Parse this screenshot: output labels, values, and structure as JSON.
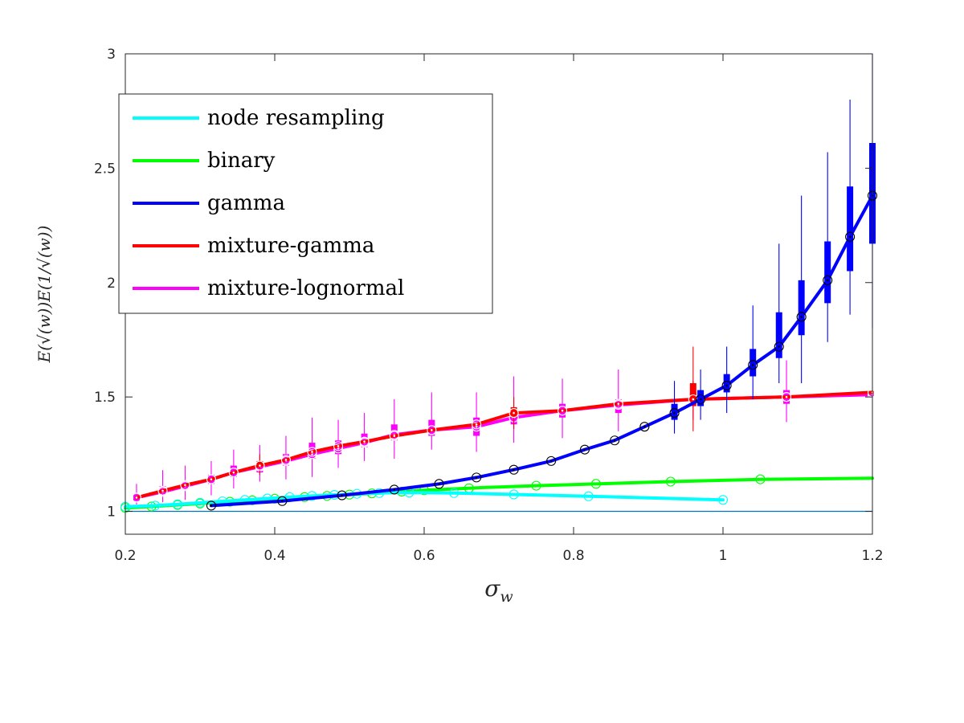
{
  "chart_data": {
    "type": "line",
    "title": "",
    "xlabel": "σ",
    "xlabel_sub": "w",
    "ylabel": "E(√(w))E(1/√(w))",
    "xlim": [
      0.2,
      1.2
    ],
    "ylim": [
      0.9,
      3
    ],
    "x_ticks": [
      "0.2",
      "0.4",
      "0.6",
      "0.8",
      "1",
      "1.2"
    ],
    "y_ticks": [
      "1",
      "1.5",
      "2",
      "2.5",
      "3"
    ],
    "grid": false,
    "legend_placement": "top-left",
    "baseline": {
      "y": 1,
      "color": "#0072BD"
    },
    "series": [
      {
        "name": "node resampling",
        "color": "#00FFFF",
        "x": [
          0.2,
          0.24,
          0.28,
          0.32,
          0.36,
          0.4,
          0.44,
          0.48,
          0.52,
          0.56,
          0.58,
          0.6,
          0.64,
          0.72,
          0.82,
          0.9,
          1.0
        ],
        "y": [
          1.02,
          1.025,
          1.033,
          1.042,
          1.05,
          1.058,
          1.066,
          1.072,
          1.078,
          1.082,
          1.082,
          1.082,
          1.08,
          1.074,
          1.066,
          1.059,
          1.05
        ],
        "markers": [
          0.2,
          0.24,
          0.27,
          0.3,
          0.33,
          0.36,
          0.39,
          0.42,
          0.45,
          0.48,
          0.51,
          0.54,
          0.58,
          0.64,
          0.72,
          0.82,
          1.0
        ]
      },
      {
        "name": "binary",
        "color": "#00FF00",
        "x": [
          0.2,
          0.24,
          0.28,
          0.32,
          0.36,
          0.4,
          0.45,
          0.5,
          0.55,
          0.6,
          0.68,
          0.75,
          0.83,
          0.93,
          1.05,
          1.2
        ],
        "y": [
          1.015,
          1.022,
          1.03,
          1.038,
          1.046,
          1.055,
          1.064,
          1.073,
          1.082,
          1.092,
          1.104,
          1.112,
          1.12,
          1.13,
          1.14,
          1.145
        ],
        "markers": [
          0.2,
          0.235,
          0.27,
          0.3,
          0.34,
          0.37,
          0.4,
          0.44,
          0.47,
          0.5,
          0.53,
          0.57,
          0.6,
          0.66,
          0.75,
          0.83,
          0.93,
          1.05
        ]
      },
      {
        "name": "gamma",
        "color": "#0000FF",
        "x": [
          0.315,
          0.41,
          0.49,
          0.56,
          0.62,
          0.67,
          0.72,
          0.77,
          0.815,
          0.855,
          0.895,
          0.935,
          0.97,
          1.005,
          1.04,
          1.075,
          1.105,
          1.14,
          1.17,
          1.2
        ],
        "y": [
          1.025,
          1.045,
          1.07,
          1.095,
          1.12,
          1.148,
          1.182,
          1.22,
          1.27,
          1.31,
          1.37,
          1.43,
          1.49,
          1.55,
          1.64,
          1.72,
          1.85,
          2.01,
          2.2,
          2.38
        ],
        "errors": [
          {
            "x": 0.935,
            "q1": 1.4,
            "q3": 1.47,
            "lo": 1.34,
            "hi": 1.57
          },
          {
            "x": 0.97,
            "q1": 1.46,
            "q3": 1.53,
            "lo": 1.4,
            "hi": 1.62
          },
          {
            "x": 1.005,
            "q1": 1.52,
            "q3": 1.6,
            "lo": 1.43,
            "hi": 1.72
          },
          {
            "x": 1.04,
            "q1": 1.59,
            "q3": 1.71,
            "lo": 1.49,
            "hi": 1.9
          },
          {
            "x": 1.075,
            "q1": 1.67,
            "q3": 1.87,
            "lo": 1.56,
            "hi": 2.17
          },
          {
            "x": 1.105,
            "q1": 1.77,
            "q3": 2.01,
            "lo": 1.56,
            "hi": 2.38
          },
          {
            "x": 1.14,
            "q1": 1.91,
            "q3": 2.18,
            "lo": 1.74,
            "hi": 2.57
          },
          {
            "x": 1.17,
            "q1": 2.05,
            "q3": 2.42,
            "lo": 1.86,
            "hi": 2.8
          },
          {
            "x": 1.2,
            "q1": 2.17,
            "q3": 2.61,
            "lo": 1.8,
            "hi": 3.0
          }
        ]
      },
      {
        "name": "mixture-gamma",
        "color": "#FF0000",
        "x": [
          0.215,
          0.25,
          0.28,
          0.315,
          0.345,
          0.38,
          0.415,
          0.45,
          0.485,
          0.52,
          0.56,
          0.61,
          0.67,
          0.72,
          0.785,
          0.86,
          0.96,
          1.085,
          1.2
        ],
        "y": [
          1.06,
          1.09,
          1.115,
          1.14,
          1.17,
          1.2,
          1.225,
          1.26,
          1.285,
          1.305,
          1.33,
          1.355,
          1.38,
          1.43,
          1.44,
          1.47,
          1.49,
          1.5,
          1.52
        ],
        "errors": [
          {
            "x": 0.38,
            "q1": 1.2,
            "q3": 1.22,
            "lo": 1.16,
            "hi": 1.25
          },
          {
            "x": 0.72,
            "q1": 1.41,
            "q3": 1.455,
            "lo": 1.36,
            "hi": 1.5
          },
          {
            "x": 0.96,
            "q1": 1.46,
            "q3": 1.56,
            "lo": 1.35,
            "hi": 1.72
          }
        ]
      },
      {
        "name": "mixture-lognormal",
        "color": "#FF00FF",
        "x": [
          0.215,
          0.25,
          0.28,
          0.315,
          0.345,
          0.38,
          0.415,
          0.45,
          0.485,
          0.52,
          0.56,
          0.61,
          0.67,
          0.72,
          0.785,
          0.86,
          0.96,
          1.085,
          1.2
        ],
        "y": [
          1.06,
          1.085,
          1.11,
          1.14,
          1.17,
          1.195,
          1.22,
          1.25,
          1.275,
          1.3,
          1.335,
          1.355,
          1.37,
          1.41,
          1.44,
          1.465,
          1.49,
          1.5,
          1.51
        ],
        "errors": [
          {
            "x": 0.215,
            "q1": 1.045,
            "q3": 1.075,
            "lo": 1.03,
            "hi": 1.12
          },
          {
            "x": 0.25,
            "q1": 1.075,
            "q3": 1.11,
            "lo": 1.04,
            "hi": 1.18
          },
          {
            "x": 0.28,
            "q1": 1.095,
            "q3": 1.13,
            "lo": 1.05,
            "hi": 1.2
          },
          {
            "x": 0.315,
            "q1": 1.12,
            "q3": 1.16,
            "lo": 1.07,
            "hi": 1.22
          },
          {
            "x": 0.345,
            "q1": 1.15,
            "q3": 1.2,
            "lo": 1.1,
            "hi": 1.27
          },
          {
            "x": 0.38,
            "q1": 1.17,
            "q3": 1.21,
            "lo": 1.13,
            "hi": 1.29
          },
          {
            "x": 0.415,
            "q1": 1.2,
            "q3": 1.25,
            "lo": 1.14,
            "hi": 1.33
          },
          {
            "x": 0.45,
            "q1": 1.23,
            "q3": 1.3,
            "lo": 1.15,
            "hi": 1.41
          },
          {
            "x": 0.485,
            "q1": 1.25,
            "q3": 1.31,
            "lo": 1.19,
            "hi": 1.4
          },
          {
            "x": 0.52,
            "q1": 1.28,
            "q3": 1.34,
            "lo": 1.22,
            "hi": 1.43
          },
          {
            "x": 0.56,
            "q1": 1.31,
            "q3": 1.38,
            "lo": 1.23,
            "hi": 1.49
          },
          {
            "x": 0.61,
            "q1": 1.33,
            "q3": 1.4,
            "lo": 1.27,
            "hi": 1.52
          },
          {
            "x": 0.67,
            "q1": 1.33,
            "q3": 1.41,
            "lo": 1.26,
            "hi": 1.52
          },
          {
            "x": 0.72,
            "q1": 1.38,
            "q3": 1.44,
            "lo": 1.3,
            "hi": 1.59
          },
          {
            "x": 0.785,
            "q1": 1.41,
            "q3": 1.47,
            "lo": 1.32,
            "hi": 1.58
          },
          {
            "x": 0.86,
            "q1": 1.43,
            "q3": 1.49,
            "lo": 1.35,
            "hi": 1.62
          },
          {
            "x": 0.96,
            "q1": 1.47,
            "q3": 1.52,
            "lo": 1.4,
            "hi": 1.57
          },
          {
            "x": 1.085,
            "q1": 1.47,
            "q3": 1.53,
            "lo": 1.39,
            "hi": 1.66
          }
        ]
      }
    ]
  }
}
